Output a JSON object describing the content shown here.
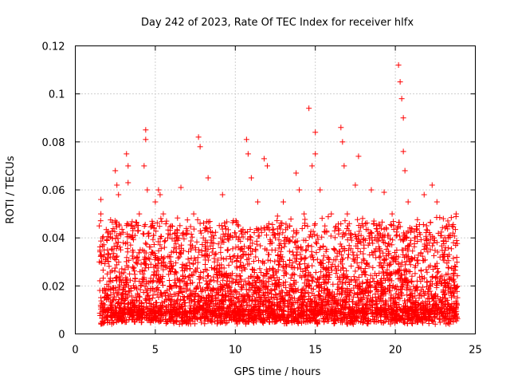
{
  "chart_data": {
    "type": "scatter",
    "title": "Day 242 of 2023, Rate Of TEC Index for receiver hlfx",
    "xlabel": "GPS time / hours",
    "ylabel": "ROTI / TECUs",
    "xlim": [
      0,
      25
    ],
    "ylim": [
      0,
      0.12
    ],
    "xticks": [
      0,
      5,
      10,
      15,
      20,
      25
    ],
    "xtick_labels": [
      "0",
      "5",
      "10",
      "15",
      "20",
      "25"
    ],
    "yticks": [
      0,
      0.02,
      0.04,
      0.06,
      0.08,
      0.1,
      0.12
    ],
    "ytick_labels": [
      "0",
      "0.02",
      "0.04",
      "0.06",
      "0.08",
      "0.1",
      "0.12"
    ],
    "grid": true,
    "marker": "plus",
    "color": "#ff0000",
    "series": [
      {
        "x": [
          1.5,
          1.5,
          1.6,
          1.6,
          1.7,
          1.8,
          2.0,
          2.2,
          2.5,
          2.6,
          2.7,
          3.0,
          3.2,
          3.3,
          3.3,
          3.5,
          4.0,
          4.3,
          4.4,
          4.4,
          4.5,
          4.6,
          5.0,
          5.2,
          5.3,
          5.5,
          5.7,
          6.0,
          6.3,
          6.6,
          7.0,
          7.4,
          7.7,
          7.8,
          8.0,
          8.3,
          8.7,
          9.2,
          9.5,
          9.8,
          10.2,
          10.7,
          10.8,
          11.0,
          11.4,
          11.8,
          12.0,
          12.5,
          13.0,
          13.4,
          13.8,
          14.0,
          14.3,
          14.6,
          14.8,
          15.0,
          15.0,
          15.3,
          15.6,
          16.0,
          16.6,
          16.7,
          16.8,
          17.0,
          17.5,
          17.7,
          18.0,
          18.5,
          19.0,
          19.3,
          19.8,
          20.2,
          20.3,
          20.4,
          20.5,
          20.5,
          20.6,
          20.8,
          21.2,
          21.8,
          22.3,
          22.6,
          23.0,
          23.3,
          23.6,
          23.8
        ],
        "y": [
          0.03,
          0.045,
          0.056,
          0.05,
          0.04,
          0.035,
          0.025,
          0.032,
          0.068,
          0.062,
          0.058,
          0.038,
          0.075,
          0.07,
          0.063,
          0.045,
          0.05,
          0.07,
          0.085,
          0.081,
          0.06,
          0.042,
          0.055,
          0.06,
          0.058,
          0.05,
          0.047,
          0.045,
          0.04,
          0.061,
          0.043,
          0.05,
          0.082,
          0.078,
          0.04,
          0.065,
          0.03,
          0.058,
          0.035,
          0.03,
          0.045,
          0.081,
          0.075,
          0.065,
          0.055,
          0.073,
          0.07,
          0.04,
          0.055,
          0.045,
          0.067,
          0.06,
          0.05,
          0.094,
          0.07,
          0.084,
          0.075,
          0.06,
          0.045,
          0.05,
          0.086,
          0.08,
          0.07,
          0.05,
          0.062,
          0.074,
          0.045,
          0.06,
          0.04,
          0.059,
          0.05,
          0.112,
          0.105,
          0.098,
          0.09,
          0.076,
          0.068,
          0.055,
          0.04,
          0.058,
          0.062,
          0.055,
          0.048,
          0.04,
          0.042,
          0.05
        ]
      }
    ]
  }
}
